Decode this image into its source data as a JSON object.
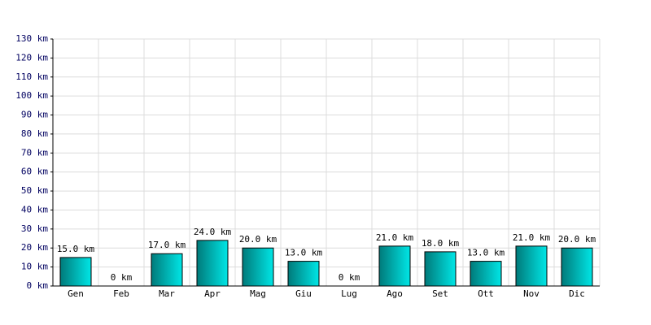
{
  "chart_data": {
    "type": "bar",
    "categories": [
      "Gen",
      "Feb",
      "Mar",
      "Apr",
      "Mag",
      "Giu",
      "Lug",
      "Ago",
      "Set",
      "Ott",
      "Nov",
      "Dic"
    ],
    "values": [
      15,
      0,
      17,
      24,
      20,
      13,
      0,
      21,
      18,
      13,
      21,
      20
    ],
    "value_labels": [
      "15.0 km",
      "0 km",
      "17.0 km",
      "24.0 km",
      "20.0 km",
      "13.0 km",
      "0 km",
      "21.0 km",
      "18.0 km",
      "13.0 km",
      "21.0 km",
      "20.0 km"
    ],
    "color": "#00e6e6",
    "ylim": [
      0,
      130
    ],
    "yticks": [
      {
        "value": 0,
        "label": "0 km"
      },
      {
        "value": 10,
        "label": "10 km"
      },
      {
        "value": 20,
        "label": "20 km"
      },
      {
        "value": 30,
        "label": "30 km"
      },
      {
        "value": 40,
        "label": "40 km"
      },
      {
        "value": 50,
        "label": "50 km"
      },
      {
        "value": 60,
        "label": "60 km"
      },
      {
        "value": 70,
        "label": "70 km"
      },
      {
        "value": 80,
        "label": "80 km"
      },
      {
        "value": 90,
        "label": "90 km"
      },
      {
        "value": 100,
        "label": "100 km"
      },
      {
        "value": 110,
        "label": "110 km"
      },
      {
        "value": 120,
        "label": "120 km"
      },
      {
        "value": 130,
        "label": "130 km"
      }
    ],
    "grid": true
  }
}
